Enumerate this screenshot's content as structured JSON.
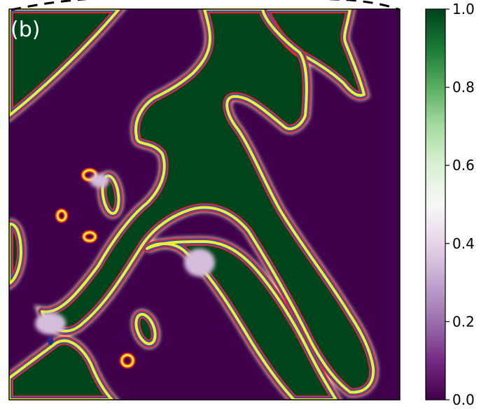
{
  "chart_data": {
    "type": "heatmap",
    "panel_label": "(b)",
    "title": "",
    "xlabel": "",
    "ylabel": "",
    "colormap": {
      "name": "PRGn",
      "stops": [
        "#40004b",
        "#762a83",
        "#9970ab",
        "#c2a5cf",
        "#e7d4e8",
        "#f7f7f7",
        "#d9f0d3",
        "#a6dba0",
        "#5aae61",
        "#1b7837",
        "#00441b"
      ]
    },
    "colorbar": {
      "range": [
        0.0,
        1.0
      ],
      "ticks": [
        "0.0",
        "0.2",
        "0.4",
        "0.6",
        "0.8",
        "1.0"
      ],
      "tick_values": [
        0.0,
        0.2,
        0.4,
        0.6,
        0.8,
        1.0
      ]
    },
    "contour_colors": {
      "red": "#e8262a",
      "blue": "#3050b8",
      "yellow": "#f2ee2a"
    },
    "boundary_line": {
      "style": "dashed",
      "color": "#000000"
    },
    "background_value": 0.0,
    "foreground_value": 1.0,
    "transition_value": 0.35
  }
}
